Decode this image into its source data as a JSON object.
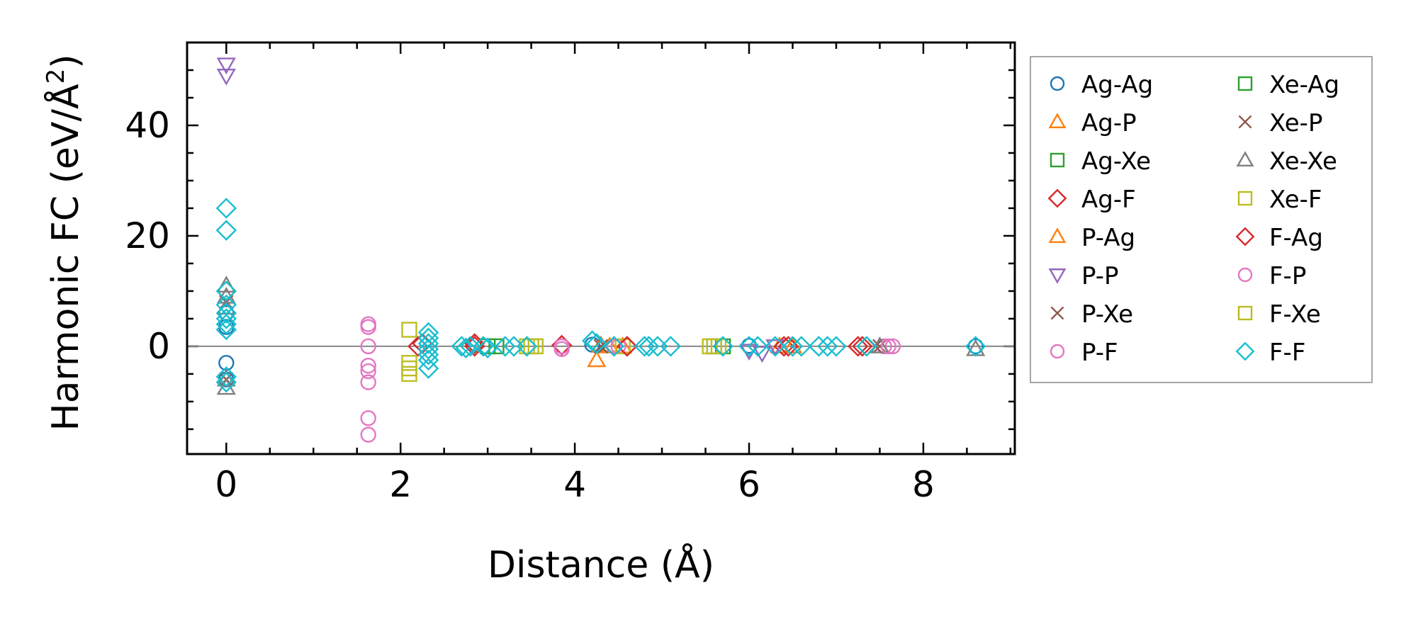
{
  "chart_data": {
    "type": "scatter",
    "xlabel": "Distance (Å)",
    "ylabel_main": "Harmonic FC (eV/Å",
    "ylabel_sup": "2",
    "ylabel_close": ")",
    "xlim": [
      -0.45,
      9.05
    ],
    "ylim": [
      -19.5,
      55.0
    ],
    "xticks": [
      0,
      2,
      4,
      6,
      8
    ],
    "xtick_labels": [
      "0",
      "2",
      "4",
      "6",
      "8"
    ],
    "yticks": [
      0,
      20,
      40
    ],
    "ytick_labels": [
      "0",
      "20",
      "40"
    ],
    "zero_line": 0,
    "grid": false,
    "legend_position": "outside-right",
    "series": [
      {
        "name": "Ag-Ag",
        "marker": "circle",
        "color": "#1f77b4",
        "points": [
          [
            0,
            3.5
          ],
          [
            0,
            6
          ],
          [
            0,
            -3
          ],
          [
            0,
            -6
          ],
          [
            4.2,
            0.3
          ],
          [
            6.0,
            0.1
          ],
          [
            8.6,
            0
          ]
        ]
      },
      {
        "name": "Ag-P",
        "marker": "triangle-up",
        "color": "#ff7f0e",
        "points": [
          [
            4.25,
            -2.5
          ],
          [
            4.3,
            0.2
          ],
          [
            4.55,
            0
          ],
          [
            6.35,
            0
          ]
        ]
      },
      {
        "name": "Ag-Xe",
        "marker": "square",
        "color": "#2ca02c",
        "points": [
          [
            3.0,
            0
          ],
          [
            5.6,
            0
          ]
        ]
      },
      {
        "name": "Ag-F",
        "marker": "diamond",
        "color": "#d62728",
        "points": [
          [
            2.2,
            0
          ],
          [
            2.85,
            0.5
          ],
          [
            3.85,
            0.2
          ],
          [
            4.6,
            0
          ],
          [
            6.4,
            0
          ],
          [
            7.3,
            0
          ]
        ]
      },
      {
        "name": "P-Ag",
        "marker": "triangle-up",
        "color": "#ff7f0e",
        "points": [
          [
            4.4,
            0
          ],
          [
            6.5,
            0
          ]
        ]
      },
      {
        "name": "P-P",
        "marker": "triangle-down",
        "color": "#9467bd",
        "points": [
          [
            0,
            51
          ],
          [
            0,
            49
          ],
          [
            6.0,
            -0.8
          ],
          [
            6.15,
            -1.2
          ],
          [
            6.3,
            0
          ]
        ]
      },
      {
        "name": "P-Xe",
        "marker": "x",
        "color": "#8c564b",
        "points": [
          [
            0,
            8
          ],
          [
            0,
            -6
          ],
          [
            4.3,
            0
          ],
          [
            7.5,
            0
          ]
        ]
      },
      {
        "name": "P-F",
        "marker": "circle",
        "color": "#e377c2",
        "points": [
          [
            1.63,
            4
          ],
          [
            1.63,
            3.5
          ],
          [
            1.63,
            0
          ],
          [
            1.63,
            -3.5
          ],
          [
            1.63,
            -4.5
          ],
          [
            1.63,
            -6.5
          ],
          [
            1.63,
            -13
          ],
          [
            1.63,
            -16
          ],
          [
            3.85,
            0
          ],
          [
            4.5,
            0
          ],
          [
            7.55,
            0
          ],
          [
            7.65,
            0
          ]
        ]
      },
      {
        "name": "Xe-Ag",
        "marker": "square",
        "color": "#2ca02c",
        "points": [
          [
            3.1,
            0
          ],
          [
            5.7,
            0
          ]
        ]
      },
      {
        "name": "Xe-P",
        "marker": "x",
        "color": "#8c564b",
        "points": [
          [
            4.35,
            0
          ],
          [
            7.45,
            0
          ]
        ]
      },
      {
        "name": "Xe-Xe",
        "marker": "triangle-up",
        "color": "#7f7f7f",
        "points": [
          [
            0,
            11
          ],
          [
            0,
            9
          ],
          [
            0,
            7
          ],
          [
            0,
            -6
          ],
          [
            0,
            -7.5
          ],
          [
            7.5,
            0
          ],
          [
            8.6,
            -0.5
          ]
        ]
      },
      {
        "name": "Xe-F",
        "marker": "square",
        "color": "#bcbd22",
        "points": [
          [
            2.1,
            3
          ],
          [
            2.1,
            -3
          ],
          [
            2.1,
            -4
          ],
          [
            2.1,
            -5
          ],
          [
            3.45,
            0
          ],
          [
            3.5,
            0
          ],
          [
            4.55,
            0
          ],
          [
            5.55,
            0
          ],
          [
            5.6,
            0
          ]
        ]
      },
      {
        "name": "F-Ag",
        "marker": "diamond",
        "color": "#d62728",
        "points": [
          [
            2.25,
            0.5
          ],
          [
            2.85,
            0
          ],
          [
            4.6,
            0
          ],
          [
            6.45,
            0
          ],
          [
            7.25,
            0
          ]
        ]
      },
      {
        "name": "F-P",
        "marker": "circle",
        "color": "#e377c2",
        "points": [
          [
            3.85,
            -0.5
          ],
          [
            4.45,
            0
          ],
          [
            7.6,
            0
          ]
        ]
      },
      {
        "name": "F-Xe",
        "marker": "square",
        "color": "#bcbd22",
        "points": [
          [
            3.55,
            0
          ],
          [
            5.65,
            0
          ]
        ]
      },
      {
        "name": "F-F",
        "marker": "diamond",
        "color": "#17becf",
        "points": [
          [
            0,
            25
          ],
          [
            0,
            21
          ],
          [
            0,
            10
          ],
          [
            0,
            7.5
          ],
          [
            0,
            6
          ],
          [
            0,
            5
          ],
          [
            0,
            4
          ],
          [
            0,
            3
          ],
          [
            0,
            -5.5
          ],
          [
            0,
            -6.5
          ],
          [
            2.32,
            2.5
          ],
          [
            2.32,
            1.5
          ],
          [
            2.32,
            0.5
          ],
          [
            2.32,
            -0.5
          ],
          [
            2.32,
            -1.5
          ],
          [
            2.32,
            -2.5
          ],
          [
            2.32,
            -4
          ],
          [
            2.7,
            0
          ],
          [
            2.75,
            -0.3
          ],
          [
            2.8,
            0
          ],
          [
            2.95,
            0
          ],
          [
            3.0,
            -0.3
          ],
          [
            3.2,
            0
          ],
          [
            3.3,
            0
          ],
          [
            3.45,
            0
          ],
          [
            4.2,
            1
          ],
          [
            4.25,
            0.5
          ],
          [
            4.45,
            0
          ],
          [
            4.8,
            0
          ],
          [
            4.85,
            0
          ],
          [
            4.95,
            0
          ],
          [
            5.1,
            0
          ],
          [
            5.7,
            0
          ],
          [
            6.0,
            0
          ],
          [
            6.1,
            0
          ],
          [
            6.3,
            0
          ],
          [
            6.5,
            0
          ],
          [
            6.6,
            0
          ],
          [
            6.8,
            0
          ],
          [
            6.9,
            0
          ],
          [
            7.0,
            0
          ],
          [
            7.35,
            0
          ],
          [
            8.6,
            0
          ]
        ]
      }
    ]
  }
}
